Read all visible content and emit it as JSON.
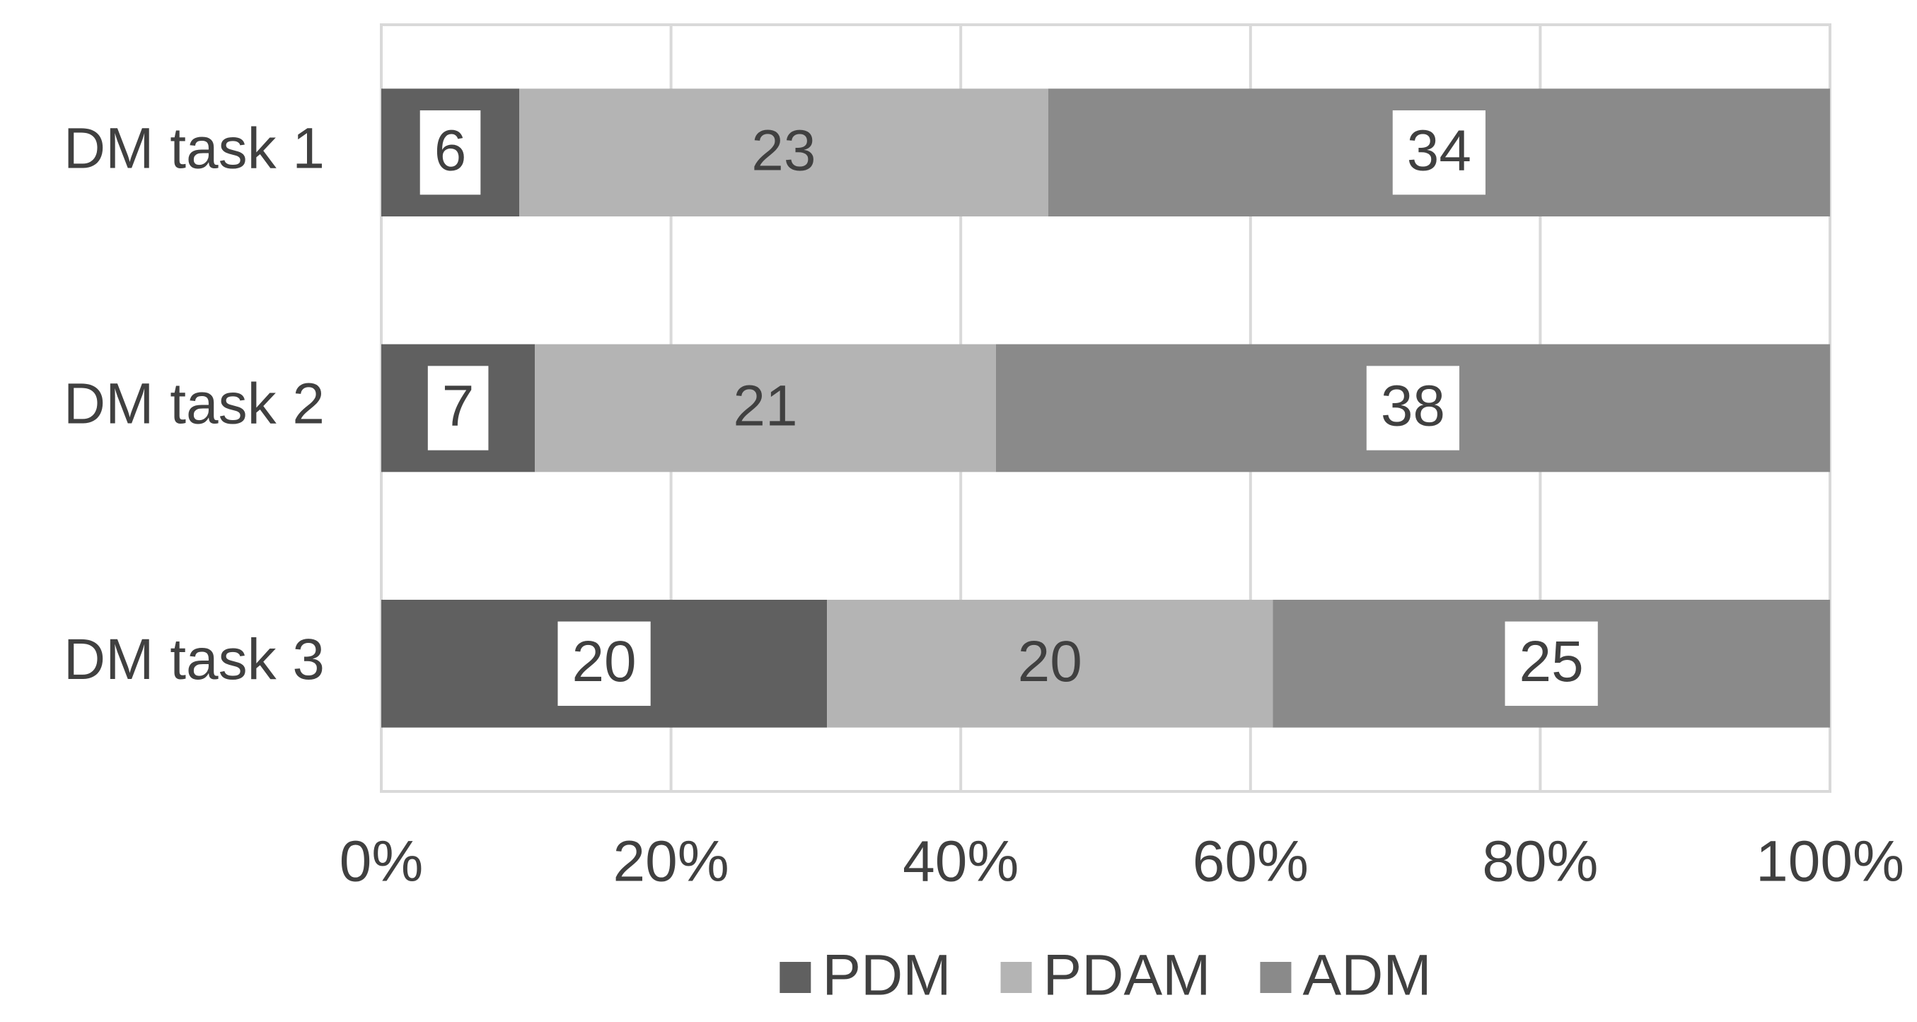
{
  "chart_data": {
    "type": "stacked_bar_horizontal",
    "stacking": "percent",
    "categories": [
      "DM task 1",
      "DM task 2",
      "DM task 3"
    ],
    "series": [
      {
        "name": "PDM",
        "color": "#606060",
        "values": [
          6,
          7,
          20
        ],
        "label_box": true
      },
      {
        "name": "PDAM",
        "color": "#b4b4b4",
        "values": [
          23,
          21,
          20
        ],
        "label_box": false
      },
      {
        "name": "ADM",
        "color": "#8a8a8a",
        "values": [
          34,
          38,
          25
        ],
        "label_box": true
      }
    ],
    "xlim": [
      0,
      100
    ],
    "xticks": [
      {
        "value": 0,
        "label": "0%"
      },
      {
        "value": 20,
        "label": "20%"
      },
      {
        "value": 40,
        "label": "40%"
      },
      {
        "value": 60,
        "label": "60%"
      },
      {
        "value": 80,
        "label": "80%"
      },
      {
        "value": 100,
        "label": "100%"
      }
    ],
    "grid": true,
    "legend": "bottom"
  }
}
